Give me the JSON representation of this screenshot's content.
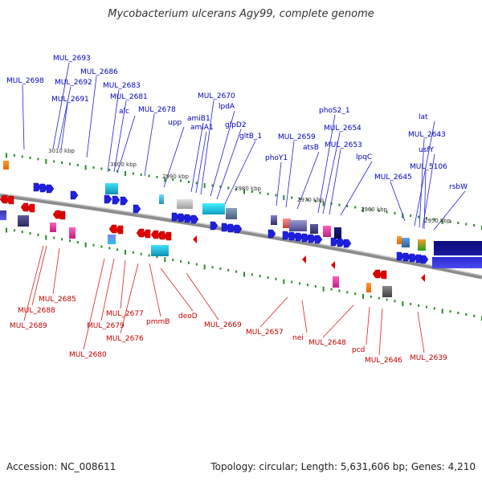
{
  "title": "Mycobacterium ulcerans Agy99, complete genome",
  "footer": {
    "accession": "Accession: NC_008611",
    "topology": "Topology: circular; Length: 5,631,606 bp; Genes: 4,210"
  },
  "colors": {
    "forward_strand": "#1f1fe0",
    "reverse_strand": "#e00000",
    "backbone": "#8c8c8c",
    "tick": "#2a8a2a"
  },
  "kbp_ticks": [
    "3010 kbp",
    "3000 kbp",
    "2990 kbp",
    "2980 kbp",
    "2970 kbp",
    "2960 kbp",
    "2950 kbp"
  ],
  "top_labels": [
    "MUL_2698",
    "MUL_2693",
    "MUL_2692",
    "MUL_2691",
    "MUL_2686",
    "MUL_2683",
    "MUL_2681",
    "alc",
    "MUL_2678",
    "upp",
    "amiB1",
    "amiA1",
    "MUL_2670",
    "lpdA",
    "glpD2",
    "gltB_1",
    "phoY1",
    "MUL_2659",
    "atsB",
    "phoS2_1",
    "MUL_2654",
    "MUL_2653",
    "lpqC",
    "MUL_2645",
    "lat",
    "MUL_2643",
    "usfY",
    "MUL_5106",
    "rsbW"
  ],
  "bottom_labels": [
    "MUL_2685",
    "MUL_2688",
    "MUL_2689",
    "MUL_2680",
    "MUL_2679",
    "MUL_2677",
    "MUL_2676",
    "pmmB",
    "deoD",
    "MUL_2669",
    "MUL_2657",
    "nei",
    "MUL_2648",
    "pcd",
    "MUL_2646",
    "MUL_2639"
  ]
}
